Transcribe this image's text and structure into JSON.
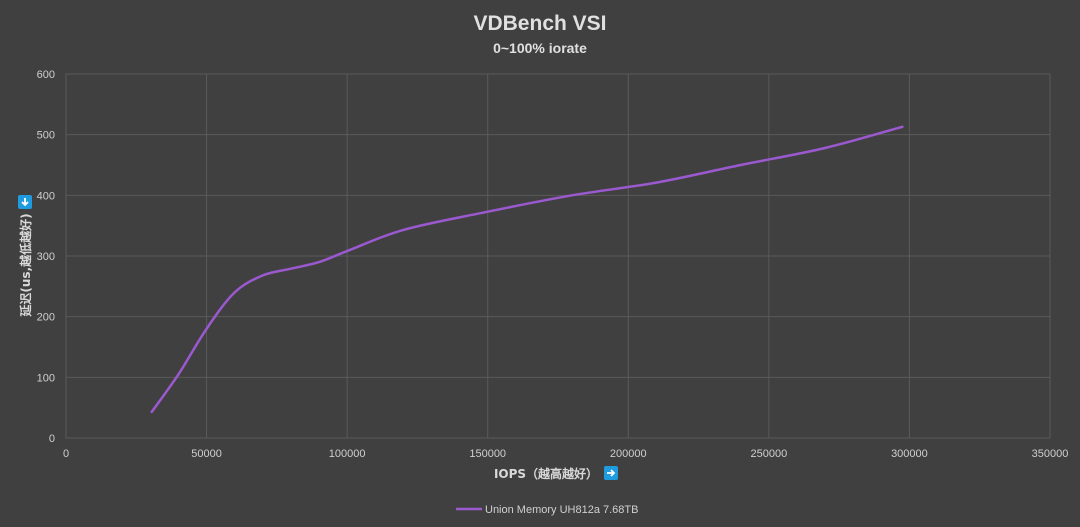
{
  "chart_data": {
    "type": "line",
    "title": "VDBench VSI",
    "subtitle": "0~100% iorate",
    "xlabel": "IOPS（越高越好）",
    "ylabel": "延迟(us,越低越好)",
    "xlabel_icon": "right-arrow-icon",
    "ylabel_icon": "down-arrow-icon",
    "xlim": [
      0,
      350000
    ],
    "ylim": [
      0,
      600
    ],
    "xticks": [
      0,
      50000,
      100000,
      150000,
      200000,
      250000,
      300000,
      350000
    ],
    "yticks": [
      0,
      100,
      200,
      300,
      400,
      500,
      600
    ],
    "grid": true,
    "legend_position": "bottom",
    "series": [
      {
        "name": "Union Memory UH812a 7.68TB",
        "color": "#9b59d0",
        "smooth": true,
        "x": [
          30500,
          40000,
          50000,
          60000,
          70000,
          80000,
          90000,
          100000,
          120000,
          150000,
          180000,
          210000,
          240000,
          270000,
          297500
        ],
        "y": [
          43,
          105,
          180,
          240,
          268,
          279,
          290,
          308,
          343,
          373,
          400,
          421,
          450,
          478,
          513
        ]
      }
    ],
    "colors": {
      "background": "#404040",
      "grid": "#5a5a5a",
      "text": "#d9d9d9",
      "icon_bg": "#1f9be0"
    }
  }
}
